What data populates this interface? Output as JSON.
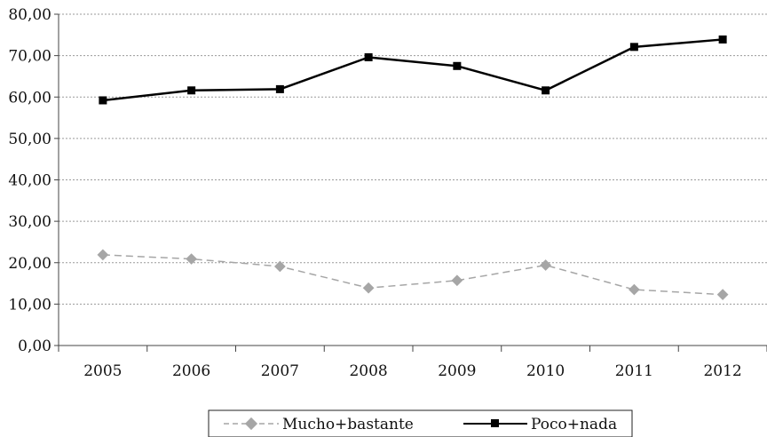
{
  "chart_data": {
    "type": "line",
    "title": "",
    "xlabel": "",
    "ylabel": "",
    "categories": [
      "2005",
      "2006",
      "2007",
      "2008",
      "2009",
      "2010",
      "2011",
      "2012"
    ],
    "y_ticks": [
      "0,00",
      "10,00",
      "20,00",
      "30,00",
      "40,00",
      "50,00",
      "60,00",
      "70,00",
      "80,00"
    ],
    "ylim": [
      0,
      80
    ],
    "grid": "horizontal dotted",
    "legend_position": "bottom",
    "series": [
      {
        "name": "Mucho+bastante",
        "values": [
          21.9,
          20.9,
          19.1,
          13.9,
          15.7,
          19.4,
          13.5,
          12.3
        ],
        "color": "#a6a6a6",
        "line_style": "dashed",
        "marker": "diamond"
      },
      {
        "name": "Poco+nada",
        "values": [
          59.2,
          61.6,
          61.9,
          69.6,
          67.5,
          61.6,
          72.1,
          73.9
        ],
        "color": "#000000",
        "line_style": "solid",
        "marker": "square"
      }
    ]
  }
}
